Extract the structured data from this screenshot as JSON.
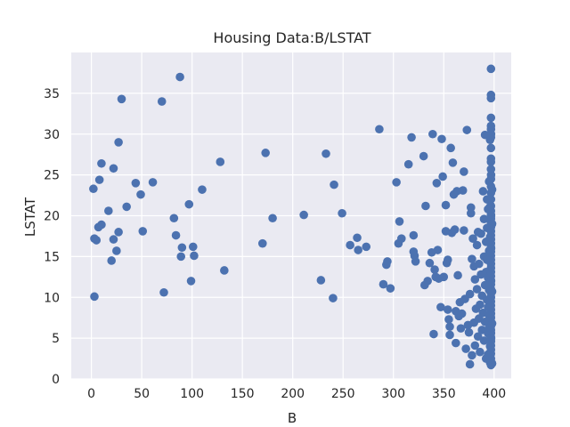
{
  "chart_data": {
    "type": "scatter",
    "title": "Housing Data:B/LSTAT",
    "xlabel": "B",
    "ylabel": "LSTAT",
    "xlim": [
      -20,
      417
    ],
    "ylim": [
      0,
      40
    ],
    "xticks": [
      0,
      50,
      100,
      150,
      200,
      250,
      300,
      350,
      400
    ],
    "yticks": [
      0,
      5,
      10,
      15,
      20,
      25,
      30,
      35
    ],
    "grid": true,
    "colors": {
      "point": "#4c72b0",
      "plot_bg": "#eaeaf2",
      "grid": "#ffffff",
      "text": "#262626"
    },
    "series": [
      {
        "points": [
          [
            2,
            23.3
          ],
          [
            3,
            17.2
          ],
          [
            3,
            10.1
          ],
          [
            5,
            17.0
          ],
          [
            7,
            18.6
          ],
          [
            8,
            24.4
          ],
          [
            10,
            26.4
          ],
          [
            10,
            18.9
          ],
          [
            17,
            20.6
          ],
          [
            20,
            14.5
          ],
          [
            22,
            25.8
          ],
          [
            22,
            17.1
          ],
          [
            25,
            15.7
          ],
          [
            27,
            29.0
          ],
          [
            27,
            18.0
          ],
          [
            30,
            34.3
          ],
          [
            35,
            21.1
          ],
          [
            44,
            24.0
          ],
          [
            49,
            22.6
          ],
          [
            51,
            18.1
          ],
          [
            61,
            24.1
          ],
          [
            70,
            34.0
          ],
          [
            72,
            10.6
          ],
          [
            82,
            19.7
          ],
          [
            84,
            17.6
          ],
          [
            88,
            37.0
          ],
          [
            89,
            15.0
          ],
          [
            90,
            16.1
          ],
          [
            97,
            21.4
          ],
          [
            99,
            12.0
          ],
          [
            101,
            16.2
          ],
          [
            102,
            15.1
          ],
          [
            110,
            23.2
          ],
          [
            128,
            26.6
          ],
          [
            132,
            13.3
          ],
          [
            170,
            16.6
          ],
          [
            173,
            27.7
          ],
          [
            180,
            19.7
          ],
          [
            211,
            20.1
          ],
          [
            228,
            12.1
          ],
          [
            233,
            27.6
          ],
          [
            240,
            9.9
          ],
          [
            241,
            23.8
          ],
          [
            249,
            20.3
          ],
          [
            257,
            16.4
          ],
          [
            264,
            17.3
          ],
          [
            265,
            15.8
          ],
          [
            273,
            16.2
          ],
          [
            286,
            30.6
          ],
          [
            290,
            11.6
          ],
          [
            293,
            14.0
          ],
          [
            294,
            14.4
          ],
          [
            297,
            11.1
          ],
          [
            303,
            24.1
          ],
          [
            305,
            16.6
          ],
          [
            306,
            19.3
          ],
          [
            308,
            17.2
          ],
          [
            315,
            26.3
          ],
          [
            318,
            29.6
          ],
          [
            320,
            17.6
          ],
          [
            320,
            15.6
          ],
          [
            321,
            15.1
          ],
          [
            322,
            14.4
          ],
          [
            330,
            27.3
          ],
          [
            331,
            11.5
          ],
          [
            332,
            21.2
          ],
          [
            334,
            12.0
          ],
          [
            336,
            14.2
          ],
          [
            338,
            15.5
          ],
          [
            339,
            30.0
          ],
          [
            340,
            5.5
          ],
          [
            341,
            13.4
          ],
          [
            342,
            12.5
          ],
          [
            343,
            24.0
          ],
          [
            344,
            15.8
          ],
          [
            345,
            12.3
          ],
          [
            347,
            8.8
          ],
          [
            348,
            29.4
          ],
          [
            349,
            24.8
          ],
          [
            350,
            12.5
          ],
          [
            352,
            21.3
          ],
          [
            352,
            18.1
          ],
          [
            353,
            14.2
          ],
          [
            354,
            14.6
          ],
          [
            354,
            8.5
          ],
          [
            355,
            7.3
          ],
          [
            356,
            5.4
          ],
          [
            356,
            6.4
          ],
          [
            357,
            28.3
          ],
          [
            358,
            17.9
          ],
          [
            359,
            26.5
          ],
          [
            360,
            22.6
          ],
          [
            361,
            18.3
          ],
          [
            362,
            8.3
          ],
          [
            362,
            4.4
          ],
          [
            363,
            23.0
          ],
          [
            364,
            12.7
          ],
          [
            365,
            7.7
          ],
          [
            366,
            9.4
          ],
          [
            367,
            6.2
          ],
          [
            368,
            8.0
          ],
          [
            369,
            23.1
          ],
          [
            370,
            18.2
          ],
          [
            370,
            25.4
          ],
          [
            371,
            9.8
          ],
          [
            372,
            3.7
          ],
          [
            373,
            30.5
          ],
          [
            374,
            6.6
          ],
          [
            375,
            5.7
          ],
          [
            376,
            10.4
          ],
          [
            376,
            1.8
          ],
          [
            377,
            20.3
          ],
          [
            377,
            21.0
          ],
          [
            378,
            14.7
          ],
          [
            378,
            2.9
          ],
          [
            379,
            17.2
          ],
          [
            380,
            13.8
          ],
          [
            380,
            6.9
          ],
          [
            381,
            12.2
          ],
          [
            381,
            4.1
          ],
          [
            382,
            8.6
          ],
          [
            383,
            16.4
          ],
          [
            383,
            11.0
          ],
          [
            384,
            5.2
          ],
          [
            384,
            18.0
          ],
          [
            385,
            7.4
          ],
          [
            385,
            14.1
          ],
          [
            386,
            9.1
          ],
          [
            386,
            3.3
          ],
          [
            387,
            12.8
          ],
          [
            387,
            17.8
          ],
          [
            388,
            6.0
          ],
          [
            388,
            10.2
          ],
          [
            389,
            23.0
          ],
          [
            389,
            8.1
          ],
          [
            390,
            15.0
          ],
          [
            390,
            19.6
          ],
          [
            390,
            4.7
          ],
          [
            391,
            29.9
          ],
          [
            391,
            11.5
          ],
          [
            391,
            7.0
          ],
          [
            392,
            13.1
          ],
          [
            392,
            16.8
          ],
          [
            392,
            2.5
          ],
          [
            393,
            9.7
          ],
          [
            393,
            14.6
          ],
          [
            393,
            18.5
          ],
          [
            393,
            22.0
          ],
          [
            394,
            5.6
          ],
          [
            394,
            8.8
          ],
          [
            394,
            12.4
          ],
          [
            394,
            3.0
          ],
          [
            394,
            20.8
          ],
          [
            395,
            7.8
          ],
          [
            395,
            10.9
          ],
          [
            395,
            15.7
          ],
          [
            395,
            24.2
          ],
          [
            395,
            6.2
          ],
          [
            396,
            4.0
          ],
          [
            396,
            13.3
          ],
          [
            396,
            17.4
          ],
          [
            396,
            9.4
          ],
          [
            396,
            2.0
          ],
          [
            396,
            21.1
          ],
          [
            396,
            29.3
          ],
          [
            396.9,
            1.7
          ],
          [
            396.9,
            2.5
          ],
          [
            396.9,
            3.1
          ],
          [
            396.9,
            3.6
          ],
          [
            396.9,
            4.1
          ],
          [
            396.9,
            4.6
          ],
          [
            396.9,
            5.1
          ],
          [
            396.9,
            5.6
          ],
          [
            396.9,
            6.0
          ],
          [
            396.9,
            6.5
          ],
          [
            396.9,
            7.0
          ],
          [
            396.9,
            7.5
          ],
          [
            396.9,
            8.0
          ],
          [
            396.9,
            8.5
          ],
          [
            396.9,
            9.0
          ],
          [
            396.9,
            9.5
          ],
          [
            396.9,
            10.0
          ],
          [
            396.9,
            10.5
          ],
          [
            396.9,
            11.0
          ],
          [
            396.9,
            11.6
          ],
          [
            396.9,
            12.1
          ],
          [
            396.9,
            12.6
          ],
          [
            396.9,
            13.1
          ],
          [
            396.9,
            13.6
          ],
          [
            396.9,
            14.1
          ],
          [
            396.9,
            14.6
          ],
          [
            396.9,
            15.1
          ],
          [
            396.9,
            15.6
          ],
          [
            396.9,
            16.1
          ],
          [
            396.9,
            16.6
          ],
          [
            396.9,
            17.1
          ],
          [
            396.9,
            17.6
          ],
          [
            396.9,
            18.1
          ],
          [
            396.9,
            18.6
          ],
          [
            396.9,
            19.1
          ],
          [
            396.9,
            19.6
          ],
          [
            396.9,
            20.1
          ],
          [
            396.9,
            20.6
          ],
          [
            396.9,
            21.2
          ],
          [
            396.9,
            22.0
          ],
          [
            396.9,
            22.8
          ],
          [
            396.9,
            23.6
          ],
          [
            396.9,
            24.5
          ],
          [
            396.9,
            25.7
          ],
          [
            396.9,
            26.6
          ],
          [
            396.9,
            27.0
          ],
          [
            396.9,
            28.3
          ],
          [
            396.9,
            29.6
          ],
          [
            396.9,
            30.6
          ],
          [
            396.9,
            31.0
          ],
          [
            396.9,
            32.0
          ],
          [
            396.9,
            34.4
          ],
          [
            396.9,
            34.8
          ],
          [
            396.9,
            38.0
          ],
          [
            397,
            5.0
          ],
          [
            397,
            12.0
          ],
          [
            397,
            16.0
          ],
          [
            397,
            20.0
          ],
          [
            397,
            25.0
          ],
          [
            397,
            30.0
          ],
          [
            398,
            1.9
          ],
          [
            398,
            6.8
          ],
          [
            398,
            10.7
          ],
          [
            398,
            19.0
          ],
          [
            398,
            23.2
          ]
        ]
      }
    ]
  }
}
